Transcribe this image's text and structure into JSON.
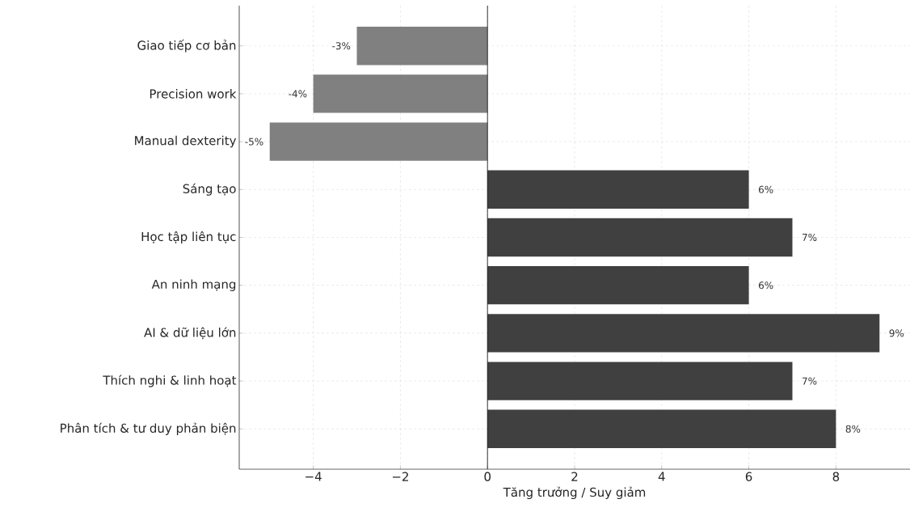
{
  "chart_data": {
    "type": "bar",
    "orientation": "horizontal",
    "xlabel": "Tăng trưởng / Suy giảm",
    "categories": [
      "Giao tiếp cơ bản",
      "Precision work",
      "Manual dexterity",
      "Sáng tạo",
      "Học tập liên tục",
      "An ninh mạng",
      "AI & dữ liệu lớn",
      "Thích nghi & linh hoạt",
      "Phân tích & tư duy phản biện"
    ],
    "values": [
      -3,
      -4,
      -5,
      6,
      7,
      6,
      9,
      7,
      8
    ],
    "colors": [
      "#808080",
      "#808080",
      "#808080",
      "#404040",
      "#404040",
      "#404040",
      "#404040",
      "#404040",
      "#404040"
    ],
    "value_labels": [
      "-3%",
      "-4%",
      "-5%",
      "6%",
      "7%",
      "6%",
      "9%",
      "7%",
      "8%"
    ],
    "xlim": [
      -5.7,
      9.7
    ],
    "xticks": [
      {
        "value": -4,
        "label": "−4"
      },
      {
        "value": -2,
        "label": "−2"
      },
      0,
      2,
      4,
      6,
      8
    ],
    "ref_lines": [
      {
        "axis": "x",
        "value": 0,
        "color": "#000000"
      }
    ],
    "grid": true
  }
}
